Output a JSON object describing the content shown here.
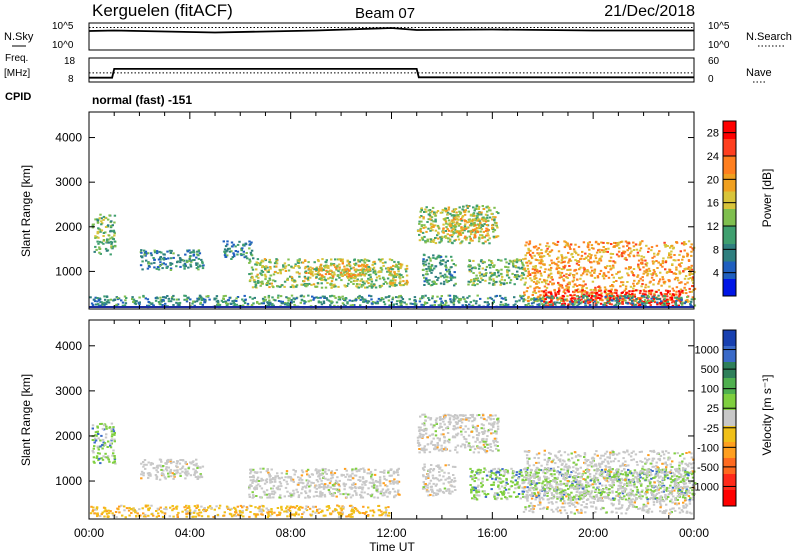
{
  "header": {
    "station": "Kerguelen (fitACF)",
    "beam": "Beam 07",
    "date": "21/Dec/2018"
  },
  "colors": {
    "power_scale": [
      "#0016e6",
      "#1f5fbf",
      "#2f7f7f",
      "#3f9f6f",
      "#7fbf4f",
      "#d8c43a",
      "#f0a020",
      "#ff7f1f",
      "#ff3f1f",
      "#ff0000"
    ],
    "velocity_scale": [
      "#1840b0",
      "#3a6ac8",
      "#2e7f5a",
      "#4fb04f",
      "#7fcf3f",
      "#c8c8c8",
      "#f0c018",
      "#ff9f1f",
      "#ff6a1f",
      "#ff2a1a",
      "#ff0000"
    ],
    "ground_line": "#1a2a9f"
  },
  "chart_data": [
    {
      "type": "line",
      "panel": "noise",
      "left_label": "N.Sky",
      "right_label": "N.Search",
      "left_ticks": [
        "10^5",
        "10^0"
      ],
      "right_ticks": [
        "10^5",
        "10^0"
      ],
      "x": [
        "00:00",
        "01:00",
        "05:00",
        "09:00",
        "12:00",
        "13:00",
        "16:00",
        "20:00",
        "24:00"
      ],
      "series": [
        {
          "values": [
            3.6,
            3.7,
            3.3,
            3.7,
            4.2,
            3.8,
            3.9,
            3.7,
            3.7
          ]
        },
        {
          "values": [
            4.3,
            4.3,
            4.3,
            4.3,
            4.3,
            4.3,
            4.3,
            4.3,
            4.3
          ]
        }
      ],
      "ylim": [
        0,
        5
      ]
    },
    {
      "type": "line",
      "panel": "frequency",
      "left_label": "Freq. [MHz]",
      "right_label": "Nave",
      "left_ticks": [
        "18",
        "8"
      ],
      "right_ticks": [
        "60",
        "0"
      ],
      "x": [
        "00:00",
        "00:55",
        "01:00",
        "13:00",
        "13:05",
        "24:00"
      ],
      "series": [
        {
          "values": [
            9.5,
            9.5,
            13.5,
            13.5,
            9.7,
            9.7
          ]
        },
        {
          "values": [
            11.7,
            11.7,
            11.7,
            11.7,
            11.7,
            11.7
          ]
        }
      ],
      "ylim": [
        8,
        18
      ]
    },
    {
      "type": "table",
      "panel": "cpid",
      "label": "CPID",
      "value": "normal (fast) -151"
    },
    {
      "type": "heatmap",
      "panel": "power",
      "ylabel": "Slant Range [km]",
      "xlim": [
        "00:00",
        "24:00"
      ],
      "ylim": [
        180,
        4550
      ],
      "yticks": [
        1000,
        2000,
        3000,
        4000
      ],
      "colorbar_label": "Power [dB]",
      "colorbar_ticks": [
        4,
        8,
        12,
        16,
        20,
        24,
        28
      ],
      "colorbar_range": [
        0,
        30
      ],
      "ground_scatter_range_km": 180,
      "echo_regions": [
        {
          "t0": 0.1,
          "t1": 1.0,
          "r0": 1400,
          "r1": 2300,
          "level": 12
        },
        {
          "t0": 2.0,
          "t1": 4.5,
          "r0": 1050,
          "r1": 1500,
          "level": 8
        },
        {
          "t0": 5.3,
          "t1": 6.5,
          "r0": 1300,
          "r1": 1700,
          "level": 8
        },
        {
          "t0": 6.3,
          "t1": 12.3,
          "r0": 650,
          "r1": 1300,
          "level": 14
        },
        {
          "t0": 8.5,
          "t1": 11.0,
          "r0": 900,
          "r1": 1200,
          "level": 19
        },
        {
          "t0": 11.8,
          "t1": 12.6,
          "r0": 700,
          "r1": 1200,
          "level": 16
        },
        {
          "t0": 13.0,
          "t1": 16.2,
          "r0": 1650,
          "r1": 2500,
          "level": 14
        },
        {
          "t0": 14.0,
          "t1": 15.8,
          "r0": 1750,
          "r1": 2200,
          "level": 18
        },
        {
          "t0": 13.2,
          "t1": 14.5,
          "r0": 700,
          "r1": 1400,
          "level": 10
        },
        {
          "t0": 15.0,
          "t1": 17.3,
          "r0": 700,
          "r1": 1300,
          "level": 12
        },
        {
          "t0": 17.2,
          "t1": 24.0,
          "r0": 300,
          "r1": 1700,
          "level": 20
        },
        {
          "t0": 18.0,
          "t1": 23.5,
          "r0": 250,
          "r1": 600,
          "level": 28
        },
        {
          "t0": 0.0,
          "t1": 24.0,
          "r0": 220,
          "r1": 480,
          "level": 9
        }
      ]
    },
    {
      "type": "heatmap",
      "panel": "velocity",
      "ylabel": "Slant Range [km]",
      "xlabel": "Time UT",
      "xticks": [
        "00:00",
        "04:00",
        "08:00",
        "12:00",
        "16:00",
        "20:00",
        "00:00"
      ],
      "ylim": [
        180,
        4550
      ],
      "yticks": [
        1000,
        2000,
        3000,
        4000
      ],
      "colorbar_label": "Velocity [m s⁻¹]",
      "colorbar_ticks": [
        1000,
        500,
        100,
        25,
        -25,
        -100,
        -500,
        -1000
      ],
      "echo_regions": [
        {
          "t0": 0.1,
          "t1": 1.0,
          "r0": 1400,
          "r1": 2300,
          "class": "positive"
        },
        {
          "t0": 2.0,
          "t1": 4.5,
          "r0": 1050,
          "r1": 1500,
          "class": "near_zero"
        },
        {
          "t0": 6.3,
          "t1": 12.3,
          "r0": 650,
          "r1": 1300,
          "class": "near_zero"
        },
        {
          "t0": 13.0,
          "t1": 16.2,
          "r0": 1650,
          "r1": 2500,
          "class": "near_zero"
        },
        {
          "t0": 13.2,
          "t1": 14.5,
          "r0": 700,
          "r1": 1400,
          "class": "near_zero"
        },
        {
          "t0": 15.0,
          "t1": 24.0,
          "r0": 600,
          "r1": 1300,
          "class": "positive"
        },
        {
          "t0": 17.2,
          "t1": 24.0,
          "r0": 300,
          "r1": 1700,
          "class": "near_zero"
        },
        {
          "t0": 0.0,
          "t1": 12.0,
          "r0": 220,
          "r1": 480,
          "class": "negative"
        }
      ]
    }
  ]
}
